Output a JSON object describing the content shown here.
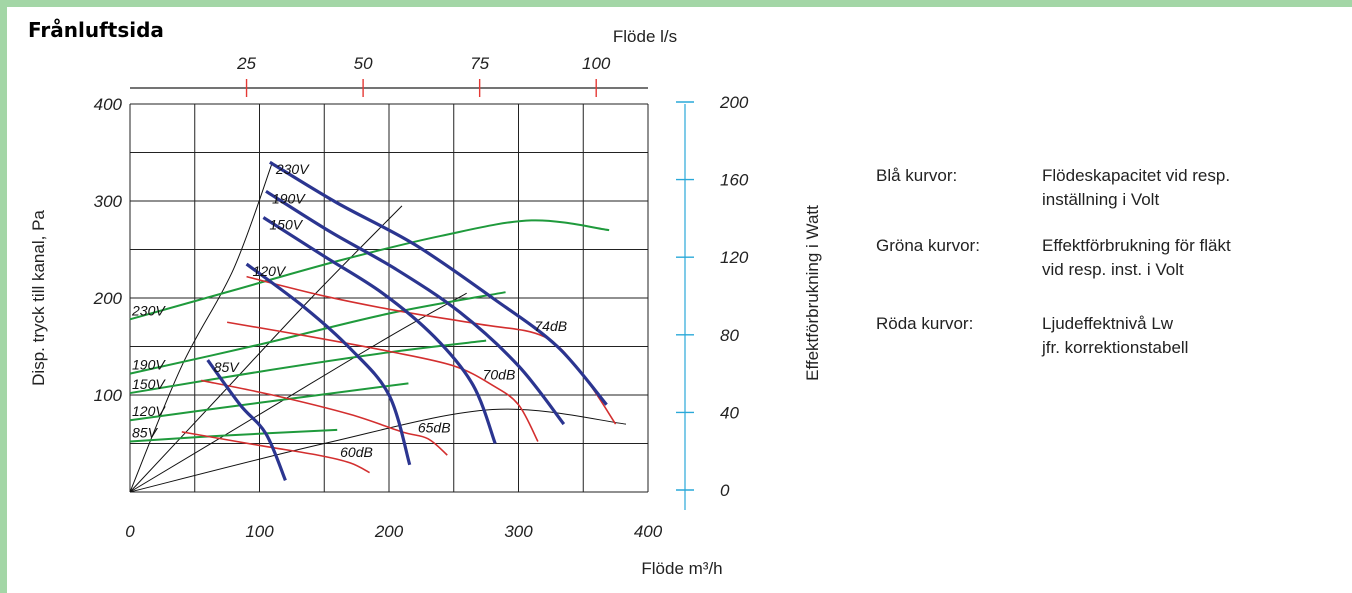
{
  "page_title": "Frånluftsida",
  "chart_data": {
    "type": "line",
    "title": "Frånluftsida",
    "xlabel": "Flöde m³/h",
    "ylabel": "Disp. tryck till kanal, Pa",
    "y2label": "Effektförbrukning i Watt",
    "x2label": "Flöde l/s",
    "xlim": [
      0,
      400
    ],
    "ylim": [
      0,
      400
    ],
    "y2lim": [
      0,
      200
    ],
    "x_ticks": [
      "0",
      "100",
      "200",
      "300",
      "400"
    ],
    "y_ticks": [
      "100",
      "200",
      "300",
      "400"
    ],
    "y2_ticks": [
      "0",
      "40",
      "80",
      "120",
      "160",
      "200"
    ],
    "x2_ticks": [
      "25",
      "50",
      "75",
      "100"
    ],
    "x2_tick_values_m3h": [
      90,
      180,
      270,
      360
    ],
    "grid": true,
    "pressure_curves": [
      {
        "name": "230V",
        "color": "#2b3590",
        "points": [
          [
            108,
            340
          ],
          [
            160,
            298
          ],
          [
            220,
            255
          ],
          [
            280,
            200
          ],
          [
            330,
            150
          ],
          [
            368,
            90
          ]
        ]
      },
      {
        "name": "190V",
        "color": "#2b3590",
        "points": [
          [
            105,
            310
          ],
          [
            155,
            268
          ],
          [
            205,
            230
          ],
          [
            255,
            185
          ],
          [
            300,
            130
          ],
          [
            335,
            70
          ]
        ]
      },
      {
        "name": "150V",
        "color": "#2b3590",
        "points": [
          [
            103,
            283
          ],
          [
            150,
            243
          ],
          [
            195,
            205
          ],
          [
            235,
            160
          ],
          [
            265,
            110
          ],
          [
            282,
            50
          ]
        ]
      },
      {
        "name": "120V",
        "color": "#2b3590",
        "points": [
          [
            90,
            235
          ],
          [
            135,
            190
          ],
          [
            170,
            148
          ],
          [
            200,
            100
          ],
          [
            216,
            28
          ]
        ]
      },
      {
        "name": "85V",
        "color": "#2b3590",
        "points": [
          [
            60,
            136
          ],
          [
            85,
            90
          ],
          [
            105,
            60
          ],
          [
            120,
            12
          ]
        ]
      }
    ],
    "power_curves": [
      {
        "name": "230V",
        "color": "#1f9a3c",
        "points": [
          [
            0,
            89
          ],
          [
            80,
            104
          ],
          [
            160,
            119
          ],
          [
            240,
            132
          ],
          [
            310,
            140
          ],
          [
            370,
            135
          ]
        ]
      },
      {
        "name": "190V",
        "color": "#1f9a3c",
        "points": [
          [
            0,
            61
          ],
          [
            100,
            76
          ],
          [
            200,
            92
          ],
          [
            290,
            103
          ]
        ]
      },
      {
        "name": "150V",
        "color": "#1f9a3c",
        "points": [
          [
            0,
            51
          ],
          [
            100,
            62
          ],
          [
            200,
            72
          ],
          [
            275,
            78
          ]
        ]
      },
      {
        "name": "120V",
        "color": "#1f9a3c",
        "points": [
          [
            0,
            37
          ],
          [
            100,
            46
          ],
          [
            215,
            56
          ]
        ]
      },
      {
        "name": "85V",
        "color": "#1f9a3c",
        "points": [
          [
            0,
            26
          ],
          [
            70,
            29
          ],
          [
            160,
            32
          ]
        ]
      }
    ],
    "sound_curves": [
      {
        "name": "74dB",
        "color": "#d32f2f",
        "points": [
          [
            90,
            222
          ],
          [
            150,
            202
          ],
          [
            210,
            186
          ],
          [
            270,
            173
          ],
          [
            320,
            160
          ],
          [
            350,
            120
          ],
          [
            375,
            70
          ]
        ]
      },
      {
        "name": "70dB",
        "color": "#d32f2f",
        "points": [
          [
            75,
            175
          ],
          [
            140,
            160
          ],
          [
            200,
            145
          ],
          [
            250,
            130
          ],
          [
            280,
            110
          ],
          [
            300,
            90
          ],
          [
            315,
            52
          ]
        ]
      },
      {
        "name": "65dB",
        "color": "#d32f2f",
        "points": [
          [
            55,
            115
          ],
          [
            110,
            100
          ],
          [
            170,
            80
          ],
          [
            210,
            62
          ],
          [
            230,
            55
          ],
          [
            245,
            38
          ]
        ]
      },
      {
        "name": "60dB",
        "color": "#d32f2f",
        "points": [
          [
            40,
            62
          ],
          [
            100,
            48
          ],
          [
            145,
            38
          ],
          [
            170,
            30
          ],
          [
            185,
            20
          ]
        ]
      }
    ],
    "reference_lines": [
      {
        "points": [
          [
            0,
            0
          ],
          [
            40,
            130
          ],
          [
            80,
            230
          ],
          [
            110,
            340
          ]
        ]
      },
      {
        "points": [
          [
            0,
            0
          ],
          [
            70,
            100
          ],
          [
            140,
            200
          ],
          [
            210,
            295
          ]
        ]
      },
      {
        "points": [
          [
            0,
            0
          ],
          [
            100,
            80
          ],
          [
            200,
            160
          ],
          [
            260,
            205
          ]
        ]
      },
      {
        "points": [
          [
            0,
            0
          ],
          [
            150,
            50
          ],
          [
            280,
            85
          ],
          [
            383,
            70
          ]
        ]
      }
    ]
  },
  "legend": [
    {
      "key": "Blå kurvor:",
      "lines": [
        "Flödeskapacitet vid resp.",
        "inställning i Volt"
      ]
    },
    {
      "key": "Gröna kurvor:",
      "lines": [
        "Effektförbrukning för fläkt",
        "vid resp. inst. i Volt"
      ]
    },
    {
      "key": "Röda kurvor:",
      "lines": [
        "Ljudeffektnivå Lw",
        "jfr. korrektionstabell"
      ]
    }
  ]
}
